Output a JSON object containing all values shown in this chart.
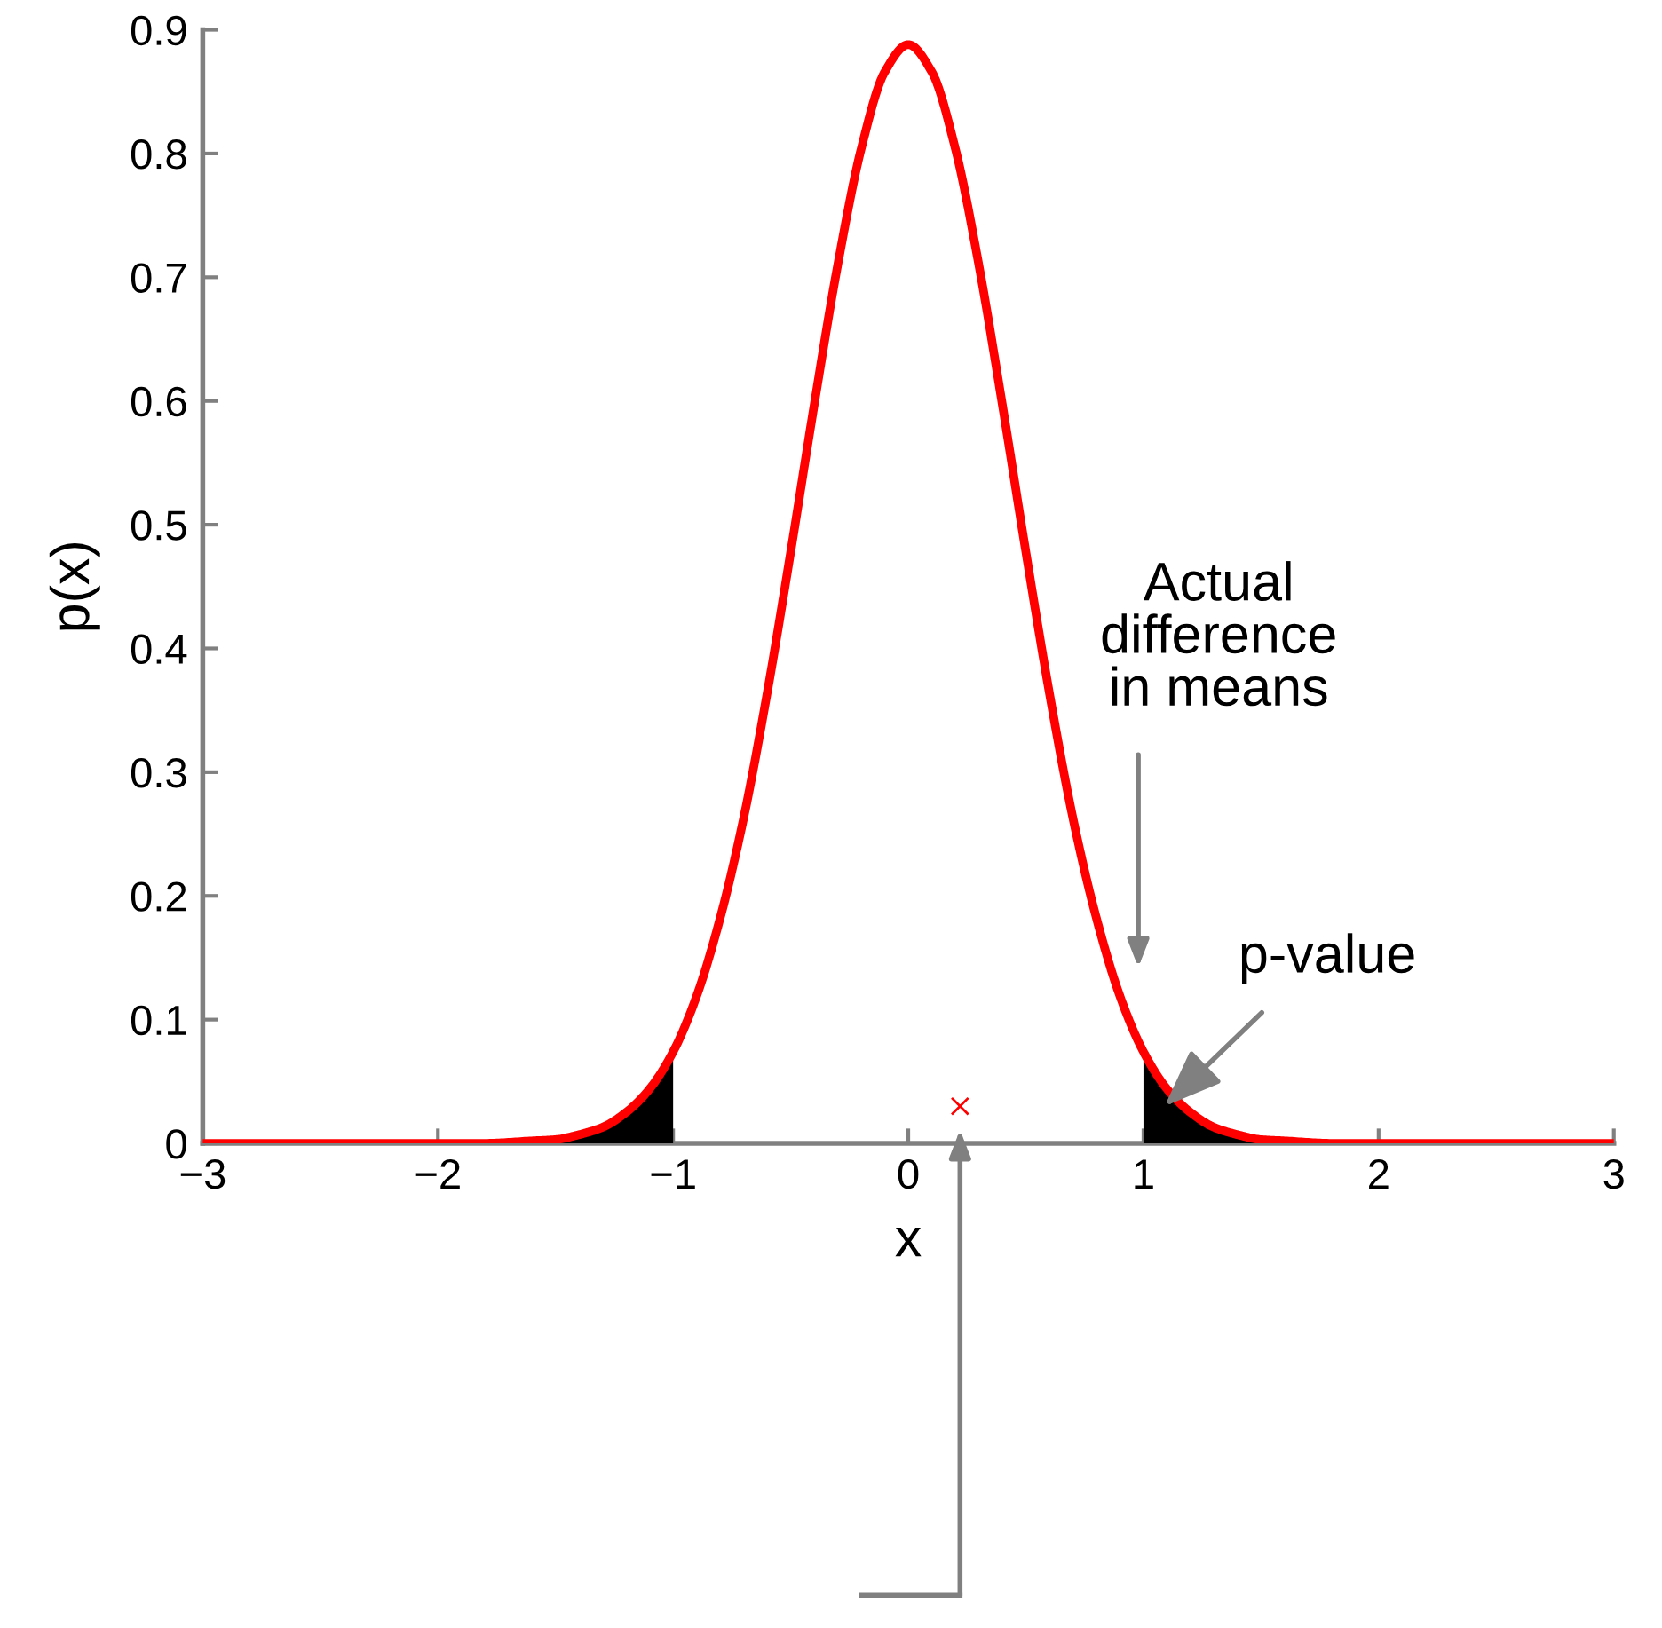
{
  "chart_data": {
    "type": "line",
    "xlabel": "x",
    "ylabel": "p(x)",
    "xlim": [
      -3,
      3
    ],
    "ylim": [
      0,
      0.9
    ],
    "xticks": [
      {
        "value": -3,
        "label": "−3"
      },
      {
        "value": -2,
        "label": "−2"
      },
      {
        "value": -1,
        "label": "−1"
      },
      0,
      1,
      2,
      3
    ],
    "yticks": [
      0,
      0.1,
      0.2,
      0.3,
      0.4,
      0.5,
      0.6,
      0.7,
      0.8,
      0.9
    ],
    "grid": false,
    "marker": "none",
    "line_style": "solid",
    "series": [
      {
        "type": "area",
        "color": "#000000",
        "x": [
          -1.6,
          -1.5,
          -1.4,
          -1.3,
          -1.2,
          -1.1,
          -1.0
        ],
        "values": [
          0.002,
          0.003,
          0.007,
          0.013,
          0.025,
          0.044,
          0.074
        ]
      },
      {
        "type": "area",
        "color": "#000000",
        "x": [
          1.0,
          1.1,
          1.2,
          1.3,
          1.4,
          1.5,
          1.6
        ],
        "values": [
          0.074,
          0.044,
          0.025,
          0.013,
          0.007,
          0.003,
          0.002
        ]
      },
      {
        "color": "#ff0000",
        "x": [
          -3,
          -2,
          -1.8,
          -1.6,
          -1.5,
          -1.4,
          -1.3,
          -1.2,
          -1.1,
          -1.0,
          -0.9,
          -0.8,
          -0.7,
          -0.6,
          -0.5,
          -0.4,
          -0.3,
          -0.2,
          -0.1,
          0,
          0.1,
          0.2,
          0.3,
          0.4,
          0.5,
          0.6,
          0.7,
          0.8,
          0.9,
          1.0,
          1.1,
          1.2,
          1.3,
          1.4,
          1.5,
          1.6,
          1.8,
          2,
          3
        ],
        "values": [
          0,
          0,
          0,
          0.002,
          0.003,
          0.007,
          0.013,
          0.025,
          0.044,
          0.074,
          0.119,
          0.182,
          0.263,
          0.364,
          0.478,
          0.597,
          0.71,
          0.804,
          0.866,
          0.888,
          0.866,
          0.804,
          0.71,
          0.597,
          0.478,
          0.364,
          0.263,
          0.182,
          0.119,
          0.074,
          0.044,
          0.025,
          0.013,
          0.007,
          0.003,
          0.002,
          0,
          0,
          0
        ]
      },
      {
        "type": "scatter",
        "color": "#ff0000",
        "marker": "cross",
        "x": [
          0.22
        ],
        "values": [
          0.03
        ]
      }
    ],
    "annotations": [
      "Actual\ndifference\nin means",
      {
        "text": "p-value",
        "x": 1.09,
        "y": 0.03
      }
    ]
  }
}
